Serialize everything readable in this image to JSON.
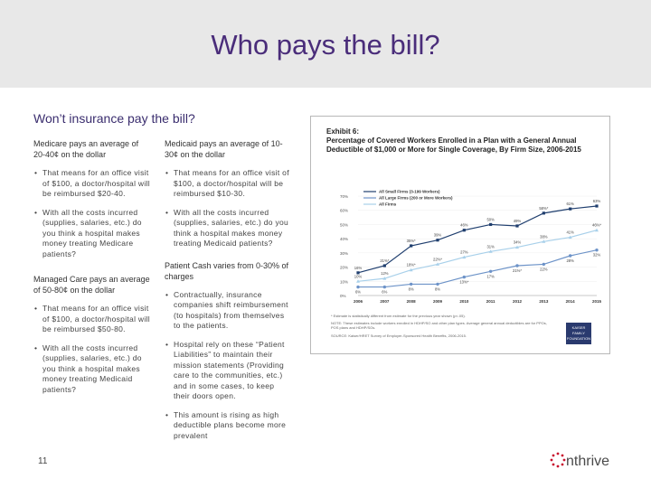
{
  "slide": {
    "title": "Who pays the bill?",
    "subtitle": "Won’t insurance pay the bill?",
    "page_number": "11",
    "logo_text": "nthrive"
  },
  "left_column": {
    "medicare_heading": "Medicare pays an average of 20-40¢ on the dollar",
    "medicare_bullets": [
      "That means for an office visit of $100, a doctor/hospital will be reimbursed $20-40.",
      "With all the costs incurred (supplies, salaries, etc.) do you think a hospital makes money treating Medicare patients?"
    ],
    "managed_heading": "Managed Care pays an average of 50-80¢ on the dollar",
    "managed_bullets": [
      "That means for an office visit of $100, a doctor/hospital will be reimbursed $50-80.",
      "With all the costs incurred (supplies, salaries, etc.) do you think a hospital makes money treating Medicaid patients?"
    ]
  },
  "middle_column": {
    "medicaid_heading": "Medicaid pays an average of 10-30¢ on the dollar",
    "medicaid_bullets": [
      "That means for an office visit of $100, a doctor/hospital will be reimbursed $10-30.",
      "With all the costs incurred (supplies, salaries, etc.) do you think a hospital makes money treating Medicaid patients?"
    ],
    "cash_heading": "Patient Cash varies from 0-30% of charges",
    "cash_bullets": [
      "Contractually, insurance companies shift reimbursement (to hospitals) from themselves to the patients.",
      "Hospital rely on these “Patient Liabilities” to maintain their mission statements (Providing care to the communities, etc.) and in some cases, to keep their doors open.",
      "This amount is rising as high deductible plans become more prevalent"
    ]
  },
  "exhibit": {
    "label": "Exhibit 6:",
    "title": "Percentage of Covered Workers Enrolled in a Plan with a General Annual Deductible of $1,000 or More for Single Coverage, By Firm Size, 2006-2015",
    "note1": "* Estimate is statistically different from estimate for the previous year shown (p<.05).",
    "note2": "NOTE: These estimates include workers enrolled in HDHP/SO and other plan types. Average general annual deductibles are for PPOs, POS plans and HDHP/SOs.",
    "note3": "SOURCE: Kaiser/HRET Survey of Employer-Sponsored Health Benefits, 2006-2015.",
    "logo_text": "KAISER FAMILY FOUNDATION",
    "colors": {
      "small": "#1f3e6e",
      "large": "#6d93c8",
      "all": "#a8d0ea"
    }
  },
  "chart_data": {
    "type": "line",
    "categories": [
      "2006",
      "2007",
      "2008",
      "2009",
      "2010",
      "2011",
      "2012",
      "2013",
      "2014",
      "2015"
    ],
    "ylim": [
      0,
      70
    ],
    "y_ticks": [
      "0%",
      "10%",
      "20%",
      "30%",
      "40%",
      "50%",
      "60%",
      "70%"
    ],
    "series": [
      {
        "name": "All Small Firms (3-199 Workers)",
        "values": [
          16,
          21,
          35,
          39,
          46,
          50,
          49,
          58,
          61,
          63
        ],
        "labels": [
          "16%",
          "21%*",
          "35%*",
          "39%",
          "46%",
          "50%",
          "49%",
          "58%*",
          "61%",
          "63%"
        ]
      },
      {
        "name": "All Large Firms (200 or More Workers)",
        "values": [
          6,
          6,
          8,
          8,
          13,
          17,
          21,
          22,
          28,
          32
        ],
        "labels": [
          "6%",
          "6%",
          "8%",
          "8%",
          "13%*",
          "17%",
          "21%*",
          "22%",
          "28%",
          "32%"
        ]
      },
      {
        "name": "All Firms",
        "values": [
          10,
          12,
          18,
          22,
          27,
          31,
          34,
          38,
          41,
          46
        ],
        "labels": [
          "10%",
          "12%",
          "18%*",
          "22%*",
          "27%",
          "31%",
          "34%",
          "38%",
          "41%",
          "46%*"
        ]
      }
    ]
  }
}
